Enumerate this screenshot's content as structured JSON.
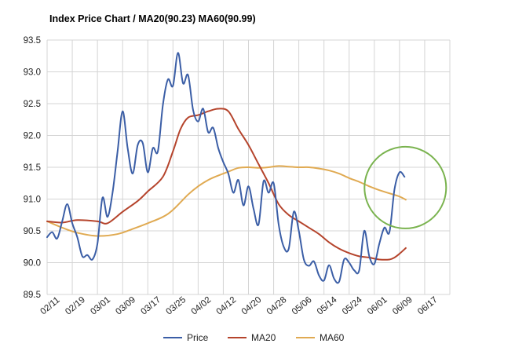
{
  "chart_data": {
    "type": "line",
    "title": "Index Price Chart / MA20(90.23) MA60(90.99)",
    "xlabel": "",
    "ylabel": "",
    "ylim": [
      89.5,
      93.5
    ],
    "yticks": [
      "89.5",
      "90.0",
      "90.5",
      "91.0",
      "91.5",
      "92.0",
      "92.5",
      "93.0",
      "93.5"
    ],
    "x_tick_labels": [
      "02/11",
      "02/19",
      "03/01",
      "03/09",
      "03/17",
      "03/25",
      "04/02",
      "04/12",
      "04/20",
      "04/28",
      "05/06",
      "05/14",
      "05/24",
      "06/01",
      "06/09",
      "06/17"
    ],
    "grid": true,
    "legend_position": "bottom",
    "series": [
      {
        "name": "Price",
        "color": "#3b5ea6",
        "points": [
          [
            0,
            90.4
          ],
          [
            0.2,
            90.48
          ],
          [
            0.4,
            90.38
          ],
          [
            0.6,
            90.65
          ],
          [
            0.8,
            90.92
          ],
          [
            1.0,
            90.62
          ],
          [
            1.2,
            90.4
          ],
          [
            1.4,
            90.1
          ],
          [
            1.6,
            90.12
          ],
          [
            1.8,
            90.05
          ],
          [
            2.0,
            90.3
          ],
          [
            2.2,
            91.02
          ],
          [
            2.4,
            90.72
          ],
          [
            2.6,
            91.1
          ],
          [
            2.8,
            91.75
          ],
          [
            3.0,
            92.38
          ],
          [
            3.2,
            91.8
          ],
          [
            3.4,
            91.4
          ],
          [
            3.6,
            91.85
          ],
          [
            3.8,
            91.88
          ],
          [
            4.0,
            91.42
          ],
          [
            4.2,
            91.8
          ],
          [
            4.4,
            91.75
          ],
          [
            4.6,
            92.48
          ],
          [
            4.8,
            92.88
          ],
          [
            5.0,
            92.78
          ],
          [
            5.2,
            93.3
          ],
          [
            5.4,
            92.82
          ],
          [
            5.6,
            92.95
          ],
          [
            5.8,
            92.4
          ],
          [
            6.0,
            92.22
          ],
          [
            6.2,
            92.42
          ],
          [
            6.4,
            92.05
          ],
          [
            6.6,
            92.12
          ],
          [
            6.8,
            91.8
          ],
          [
            7.0,
            91.58
          ],
          [
            7.2,
            91.4
          ],
          [
            7.4,
            91.1
          ],
          [
            7.6,
            91.3
          ],
          [
            7.8,
            90.9
          ],
          [
            8.0,
            91.2
          ],
          [
            8.2,
            90.85
          ],
          [
            8.4,
            90.6
          ],
          [
            8.6,
            91.28
          ],
          [
            8.8,
            91.1
          ],
          [
            9.0,
            91.25
          ],
          [
            9.2,
            90.6
          ],
          [
            9.4,
            90.25
          ],
          [
            9.6,
            90.22
          ],
          [
            9.8,
            90.8
          ],
          [
            10.0,
            90.5
          ],
          [
            10.2,
            90.05
          ],
          [
            10.4,
            89.95
          ],
          [
            10.6,
            90.02
          ],
          [
            10.8,
            89.8
          ],
          [
            11.0,
            89.72
          ],
          [
            11.2,
            89.96
          ],
          [
            11.4,
            89.75
          ],
          [
            11.6,
            89.7
          ],
          [
            11.8,
            90.05
          ],
          [
            12.0,
            90.0
          ],
          [
            12.2,
            89.88
          ],
          [
            12.4,
            89.88
          ],
          [
            12.6,
            90.5
          ],
          [
            12.8,
            90.1
          ],
          [
            13.0,
            89.98
          ],
          [
            13.2,
            90.3
          ],
          [
            13.4,
            90.55
          ],
          [
            13.6,
            90.48
          ],
          [
            13.8,
            91.15
          ],
          [
            14.0,
            91.42
          ],
          [
            14.2,
            91.35
          ]
        ]
      },
      {
        "name": "MA20",
        "color": "#b5442c",
        "points": [
          [
            0,
            90.65
          ],
          [
            0.6,
            90.63
          ],
          [
            1.2,
            90.67
          ],
          [
            2.0,
            90.65
          ],
          [
            2.4,
            90.62
          ],
          [
            3.0,
            90.8
          ],
          [
            3.6,
            90.97
          ],
          [
            4.0,
            91.12
          ],
          [
            4.6,
            91.35
          ],
          [
            5.0,
            91.75
          ],
          [
            5.3,
            92.1
          ],
          [
            5.6,
            92.28
          ],
          [
            6.0,
            92.32
          ],
          [
            6.4,
            92.38
          ],
          [
            6.8,
            92.42
          ],
          [
            7.2,
            92.38
          ],
          [
            7.6,
            92.1
          ],
          [
            8.0,
            91.85
          ],
          [
            8.4,
            91.55
          ],
          [
            8.8,
            91.25
          ],
          [
            9.2,
            90.92
          ],
          [
            9.6,
            90.75
          ],
          [
            10.0,
            90.65
          ],
          [
            10.4,
            90.55
          ],
          [
            10.8,
            90.45
          ],
          [
            11.2,
            90.32
          ],
          [
            11.6,
            90.22
          ],
          [
            12.0,
            90.15
          ],
          [
            12.4,
            90.1
          ],
          [
            12.8,
            90.08
          ],
          [
            13.2,
            90.05
          ],
          [
            13.6,
            90.05
          ],
          [
            13.8,
            90.08
          ],
          [
            14.0,
            90.14
          ],
          [
            14.25,
            90.23
          ]
        ]
      },
      {
        "name": "MA60",
        "color": "#e0aa52",
        "points": [
          [
            0,
            90.65
          ],
          [
            0.6,
            90.55
          ],
          [
            1.2,
            90.47
          ],
          [
            2.0,
            90.42
          ],
          [
            2.8,
            90.45
          ],
          [
            3.4,
            90.53
          ],
          [
            4.0,
            90.62
          ],
          [
            4.6,
            90.72
          ],
          [
            5.0,
            90.83
          ],
          [
            5.6,
            91.07
          ],
          [
            6.0,
            91.2
          ],
          [
            6.4,
            91.3
          ],
          [
            6.8,
            91.37
          ],
          [
            7.2,
            91.43
          ],
          [
            7.6,
            91.49
          ],
          [
            8.0,
            91.5
          ],
          [
            8.4,
            91.49
          ],
          [
            8.8,
            91.5
          ],
          [
            9.2,
            91.52
          ],
          [
            9.6,
            91.51
          ],
          [
            10.0,
            91.5
          ],
          [
            10.4,
            91.5
          ],
          [
            10.8,
            91.48
          ],
          [
            11.2,
            91.45
          ],
          [
            11.6,
            91.4
          ],
          [
            12.0,
            91.33
          ],
          [
            12.4,
            91.27
          ],
          [
            12.8,
            91.2
          ],
          [
            13.2,
            91.14
          ],
          [
            13.6,
            91.09
          ],
          [
            14.0,
            91.04
          ],
          [
            14.25,
            90.99
          ]
        ]
      }
    ],
    "annotations": [
      {
        "type": "circle",
        "color": "#7ab34f",
        "description": "highlights latest price crossing above MA60"
      }
    ]
  }
}
